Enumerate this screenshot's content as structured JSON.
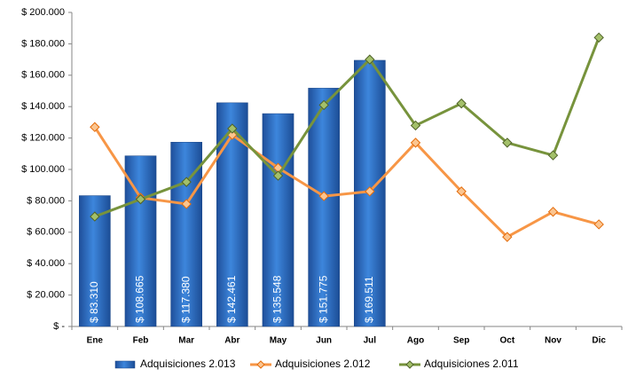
{
  "chart_data": {
    "type": "bar_line",
    "categories": [
      "Ene",
      "Feb",
      "Mar",
      "Abr",
      "May",
      "Jun",
      "Jul",
      "Ago",
      "Sep",
      "Oct",
      "Nov",
      "Dic"
    ],
    "series": [
      {
        "name": "Adquisiciones 2.013",
        "type": "bar",
        "color": "#2f72c8",
        "values": [
          83310,
          108665,
          117380,
          142461,
          135548,
          151775,
          169511,
          null,
          null,
          null,
          null,
          null
        ],
        "value_labels": [
          "$ 83.310",
          "$ 108.665",
          "$ 117.380",
          "$ 142.461",
          "$ 135.548",
          "$ 151.775",
          "$ 169.511",
          null,
          null,
          null,
          null,
          null
        ]
      },
      {
        "name": "Adquisiciones 2.012",
        "type": "line",
        "color": "#f79646",
        "values": [
          127000,
          82000,
          78000,
          122000,
          101000,
          83000,
          86000,
          117000,
          86000,
          57000,
          73000,
          65000
        ]
      },
      {
        "name": "Adquisiciones 2.011",
        "type": "line",
        "color": "#77933c",
        "values": [
          70000,
          81000,
          92000,
          126000,
          96000,
          141000,
          170000,
          128000,
          142000,
          117000,
          109000,
          184000
        ]
      }
    ],
    "ylim": [
      0,
      200000
    ],
    "yticks": [
      {
        "value": 0,
        "label": "$ -"
      },
      {
        "value": 20000,
        "label": "$ 20.000"
      },
      {
        "value": 40000,
        "label": "$ 40.000"
      },
      {
        "value": 60000,
        "label": "$ 60.000"
      },
      {
        "value": 80000,
        "label": "$ 80.000"
      },
      {
        "value": 100000,
        "label": "$ 100.000"
      },
      {
        "value": 120000,
        "label": "$ 120.000"
      },
      {
        "value": 140000,
        "label": "$ 140.000"
      },
      {
        "value": 160000,
        "label": "$ 160.000"
      },
      {
        "value": 180000,
        "label": "$ 180.000"
      },
      {
        "value": 200000,
        "label": "$ 200.000"
      }
    ],
    "grid": false,
    "legend": "bottom"
  }
}
